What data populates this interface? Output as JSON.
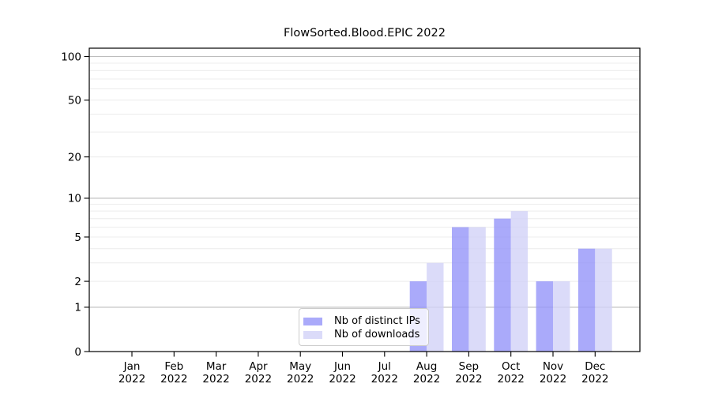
{
  "chart_data": {
    "type": "bar",
    "title": "FlowSorted.Blood.EPIC 2022",
    "categories": [
      "Jan 2022",
      "Feb 2022",
      "Mar 2022",
      "Apr 2022",
      "May 2022",
      "Jun 2022",
      "Jul 2022",
      "Aug 2022",
      "Sep 2022",
      "Oct 2022",
      "Nov 2022",
      "Dec 2022"
    ],
    "series": [
      {
        "name": "Nb of distinct IPs",
        "color": "#9595f9",
        "alpha": 0.8,
        "values": [
          0,
          0,
          0,
          0,
          0,
          0,
          0,
          2,
          6,
          7,
          2,
          4
        ]
      },
      {
        "name": "Nb of downloads",
        "color": "#d2d2f8",
        "alpha": 0.8,
        "values": [
          0,
          0,
          0,
          0,
          0,
          0,
          0,
          3,
          6,
          8,
          2,
          4
        ]
      }
    ],
    "xlabel": "",
    "ylabel": "",
    "yscale": "log1p",
    "ylim": [
      0,
      113
    ],
    "yticks": [
      0,
      1,
      2,
      5,
      10,
      20,
      50,
      100
    ],
    "major_gridlines": [
      1,
      10,
      100
    ],
    "minor_gridlines": [
      2,
      3,
      4,
      5,
      6,
      7,
      8,
      9,
      20,
      30,
      40,
      50,
      60,
      70,
      80,
      90
    ],
    "grid": "on",
    "legend_position": "bottom-center",
    "colors": {
      "major_grid": "#bdbdbd",
      "minor_grid": "#ececec",
      "axis": "#000000",
      "background": "#ffffff"
    }
  }
}
